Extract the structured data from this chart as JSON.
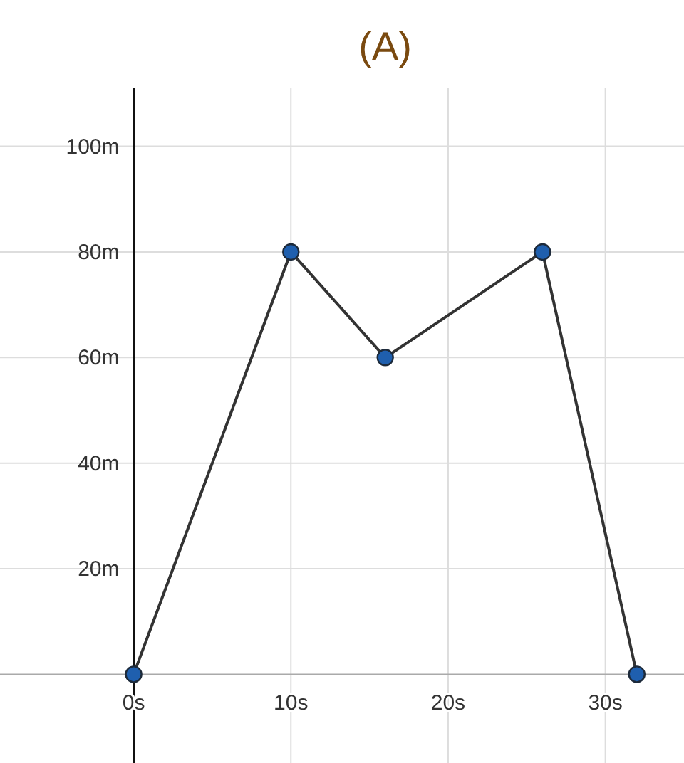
{
  "chart_data": {
    "type": "line",
    "title": "(A)",
    "x": [
      0,
      10,
      16,
      26,
      32
    ],
    "series": [
      {
        "color": "#333333",
        "values": [
          0,
          80,
          60,
          80,
          0
        ]
      }
    ],
    "xlim": [
      -8.5,
      35
    ],
    "ylim": [
      -16.8,
      111
    ],
    "xticks": [
      {
        "value": 0,
        "label": "0s"
      },
      {
        "value": 10,
        "label": "10s"
      },
      {
        "value": 20,
        "label": "20s"
      },
      {
        "value": 30,
        "label": "30s"
      }
    ],
    "yticks": [
      {
        "value": 20,
        "label": "20m"
      },
      {
        "value": 40,
        "label": "40m"
      },
      {
        "value": 60,
        "label": "60m"
      },
      {
        "value": 80,
        "label": "80m"
      },
      {
        "value": 100,
        "label": "100m"
      }
    ],
    "grid": true,
    "marker": "circle",
    "line_style": "solid"
  }
}
